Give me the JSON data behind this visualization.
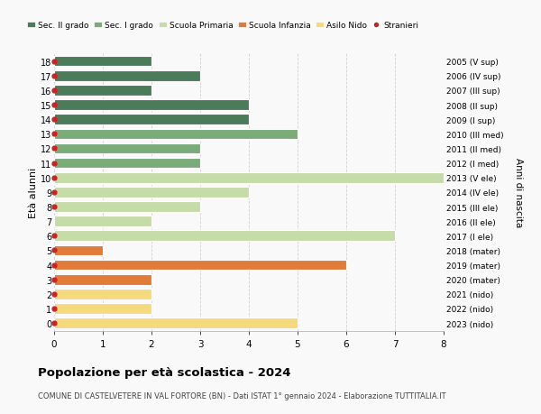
{
  "ages": [
    18,
    17,
    16,
    15,
    14,
    13,
    12,
    11,
    10,
    9,
    8,
    7,
    6,
    5,
    4,
    3,
    2,
    1,
    0
  ],
  "right_labels": [
    "2005 (V sup)",
    "2006 (IV sup)",
    "2007 (III sup)",
    "2008 (II sup)",
    "2009 (I sup)",
    "2010 (III med)",
    "2011 (II med)",
    "2012 (I med)",
    "2013 (V ele)",
    "2014 (IV ele)",
    "2015 (III ele)",
    "2016 (II ele)",
    "2017 (I ele)",
    "2018 (mater)",
    "2019 (mater)",
    "2020 (mater)",
    "2021 (nido)",
    "2022 (nido)",
    "2023 (nido)"
  ],
  "values": [
    2,
    3,
    2,
    4,
    4,
    5,
    3,
    3,
    8,
    4,
    3,
    2,
    7,
    1,
    6,
    2,
    2,
    2,
    5
  ],
  "colors": [
    "#4a7c59",
    "#4a7c59",
    "#4a7c59",
    "#4a7c59",
    "#4a7c59",
    "#7aab78",
    "#7aab78",
    "#7aab78",
    "#c5dba8",
    "#c5dba8",
    "#c5dba8",
    "#c5dba8",
    "#c5dba8",
    "#e07b3a",
    "#e07b3a",
    "#e07b3a",
    "#f5d97e",
    "#f5d97e",
    "#f5d97e"
  ],
  "stranieri": [
    1,
    1,
    1,
    1,
    1,
    1,
    1,
    1,
    1,
    1,
    1,
    0,
    1,
    1,
    1,
    1,
    1,
    1,
    1
  ],
  "legend_labels": [
    "Sec. II grado",
    "Sec. I grado",
    "Scuola Primaria",
    "Scuola Infanzia",
    "Asilo Nido",
    "Stranieri"
  ],
  "legend_colors": [
    "#4a7c59",
    "#7aab78",
    "#c5dba8",
    "#e07b3a",
    "#f5d97e",
    "#cc2222"
  ],
  "ylabel": "Età alunni",
  "right_ylabel": "Anni di nascita",
  "title": "Popolazione per età scolastica - 2024",
  "subtitle": "COMUNE DI CASTELVETERE IN VAL FORTORE (BN) - Dati ISTAT 1° gennaio 2024 - Elaborazione TUTTITALIA.IT",
  "xlim": [
    0,
    8
  ],
  "stranieri_color": "#cc2222",
  "background_color": "#f9f9f9",
  "grid_color": "#cccccc"
}
